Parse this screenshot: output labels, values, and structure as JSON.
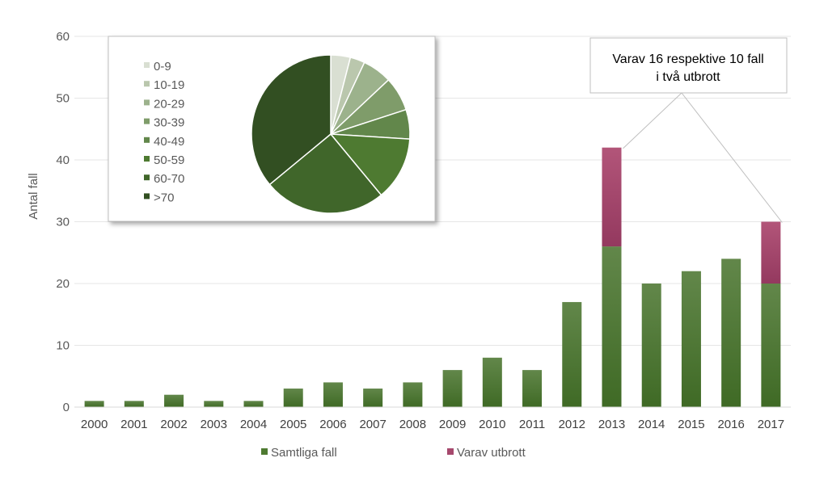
{
  "chart_data": [
    {
      "type": "bar",
      "stacked": true,
      "ylabel": "Antal fall",
      "ylim": [
        0,
        60
      ],
      "yticks": [
        0,
        10,
        20,
        30,
        40,
        50,
        60
      ],
      "grid": true,
      "legend_position": "bottom",
      "categories": [
        "2000",
        "2001",
        "2002",
        "2003",
        "2004",
        "2005",
        "2006",
        "2007",
        "2008",
        "2009",
        "2010",
        "2011",
        "2012",
        "2013",
        "2014",
        "2015",
        "2016",
        "2017"
      ],
      "series": [
        {
          "name": "Samtliga fall",
          "color": "#4e7a31",
          "values": [
            1,
            1,
            2,
            1,
            1,
            3,
            4,
            3,
            4,
            6,
            8,
            6,
            17,
            26,
            20,
            22,
            24,
            20
          ]
        },
        {
          "name": "Varav utbrott",
          "color": "#a6486d",
          "values": [
            0,
            0,
            0,
            0,
            0,
            0,
            0,
            0,
            0,
            0,
            0,
            0,
            0,
            16,
            0,
            0,
            0,
            10
          ]
        }
      ],
      "annotation": {
        "lines": [
          "Varav 16 respektive 10 fall",
          "i två utbrott"
        ],
        "targets": [
          "2013",
          "2017"
        ]
      }
    },
    {
      "type": "pie",
      "legend_position": "left",
      "labels": [
        "0-9",
        "10-19",
        "20-29",
        "30-39",
        "40-49",
        "50-59",
        "60-70",
        ">70"
      ],
      "values": [
        4,
        3,
        6,
        7,
        6,
        13,
        25,
        36
      ],
      "colors": [
        "#d9dfd2",
        "#bac7ad",
        "#9cb28c",
        "#7f9c6a",
        "#62874b",
        "#4e7a31",
        "#40662a",
        "#324f22"
      ]
    }
  ]
}
